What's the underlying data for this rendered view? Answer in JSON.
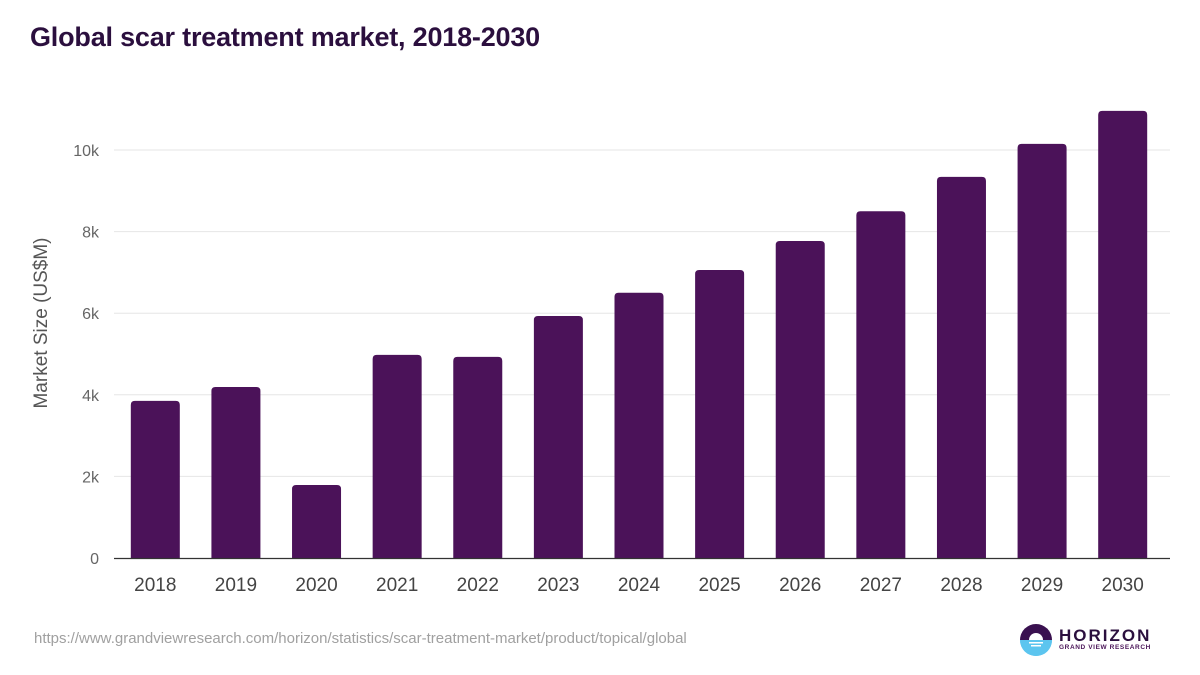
{
  "chart_data": {
    "type": "bar",
    "title": "Global scar treatment market, 2018-2030",
    "xlabel": "",
    "ylabel": "Market Size (US$M)",
    "categories": [
      "2018",
      "2019",
      "2020",
      "2021",
      "2022",
      "2023",
      "2024",
      "2025",
      "2026",
      "2027",
      "2028",
      "2029",
      "2030"
    ],
    "values": [
      3850,
      4190,
      1790,
      4980,
      4930,
      5930,
      6500,
      7060,
      7770,
      8500,
      9340,
      10150,
      10960
    ],
    "ylim": [
      0,
      11000
    ],
    "yticks": [
      0,
      2000,
      4000,
      6000,
      8000,
      10000
    ],
    "ytick_labels": [
      "0",
      "2k",
      "4k",
      "6k",
      "8k",
      "10k"
    ],
    "grid": true,
    "legend": "none",
    "bar_color": "#4b1259"
  },
  "footer": {
    "source_url": "https://www.grandviewresearch.com/horizon/statistics/scar-treatment-market/product/topical/global",
    "logo_word": "HORIZON",
    "logo_sub": "GRAND VIEW RESEARCH"
  }
}
